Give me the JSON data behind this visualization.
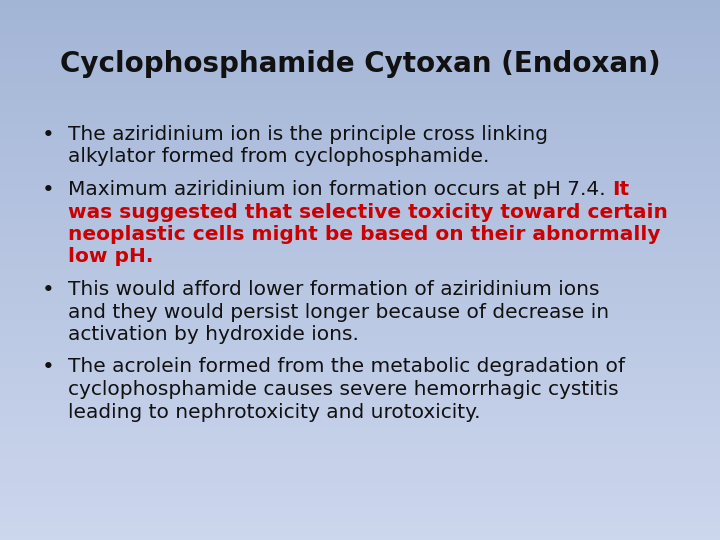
{
  "title": "Cyclophosphamide Cytoxan (Endoxan)",
  "title_fontsize": 20,
  "title_color": "#111111",
  "bg_color_top": "#a3b5d6",
  "bg_color_bottom": "#ccd6ed",
  "bullet_fontsize": 14.5,
  "black": "#111111",
  "red": "#cc0000",
  "figsize": [
    7.2,
    5.4
  ],
  "dpi": 100,
  "bullets_rendered": [
    {
      "lines": [
        [
          [
            "The aziridinium ion is the principle cross linking",
            "#111111",
            false
          ]
        ],
        [
          [
            "alkylator formed from cyclophosphamide.",
            "#111111",
            false
          ]
        ]
      ]
    },
    {
      "lines": [
        [
          [
            "Maximum aziridinium ion formation occurs at pH 7.4. ",
            "#111111",
            false
          ],
          [
            "It",
            "#cc0000",
            true
          ]
        ],
        [
          [
            "was suggested that selective toxicity toward certain",
            "#cc0000",
            true
          ]
        ],
        [
          [
            "neoplastic cells might be based on their abnormally",
            "#cc0000",
            true
          ]
        ],
        [
          [
            "low pH.",
            "#cc0000",
            true
          ]
        ]
      ]
    },
    {
      "lines": [
        [
          [
            "This would afford lower formation of aziridinium ions",
            "#111111",
            false
          ]
        ],
        [
          [
            "and they would persist longer because of decrease in",
            "#111111",
            false
          ]
        ],
        [
          [
            "activation by hydroxide ions.",
            "#111111",
            false
          ]
        ]
      ]
    },
    {
      "lines": [
        [
          [
            "The acrolein formed from the metabolic degradation of",
            "#111111",
            false
          ]
        ],
        [
          [
            "cyclophosphamide causes severe hemorrhagic cystitis",
            "#111111",
            false
          ]
        ],
        [
          [
            "leading to nephrotoxicity and urotoxicity.",
            "#111111",
            false
          ]
        ]
      ]
    }
  ]
}
